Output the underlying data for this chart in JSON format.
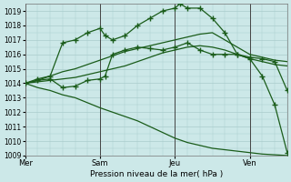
{
  "xlabel": "Pression niveau de la mer( hPa )",
  "ylim": [
    1009,
    1019.5
  ],
  "yticks": [
    1009,
    1010,
    1011,
    1012,
    1013,
    1014,
    1015,
    1016,
    1017,
    1018,
    1019
  ],
  "bg_color": "#cce8e8",
  "grid_color": "#aacccc",
  "line_color": "#1a5c1a",
  "day_labels": [
    "Mer",
    "Sam",
    "Jeu",
    "Ven"
  ],
  "day_positions": [
    0,
    3,
    6,
    9
  ],
  "xlim": [
    0,
    10.5
  ],
  "lines": [
    {
      "x": [
        0,
        0.5,
        1,
        1.5,
        2,
        2.5,
        3,
        3.5,
        4,
        4.5,
        5,
        5.5,
        6,
        6.5,
        7,
        7.5,
        8,
        8.5,
        9,
        9.5,
        10,
        10.5
      ],
      "y": [
        1014.0,
        1014.2,
        1014.5,
        1014.8,
        1015.0,
        1015.3,
        1015.6,
        1015.9,
        1016.2,
        1016.4,
        1016.6,
        1016.8,
        1017.0,
        1017.2,
        1017.4,
        1017.5,
        1017.0,
        1016.5,
        1016.0,
        1015.8,
        1015.6,
        1015.5
      ],
      "has_markers": false
    },
    {
      "x": [
        0,
        0.5,
        1,
        1.5,
        2,
        2.5,
        3,
        3.5,
        4,
        4.5,
        5,
        5.5,
        6,
        6.5,
        7,
        7.5,
        8,
        8.5,
        9,
        9.5,
        10,
        10.5
      ],
      "y": [
        1014.0,
        1014.1,
        1014.2,
        1014.3,
        1014.4,
        1014.6,
        1014.8,
        1015.0,
        1015.2,
        1015.5,
        1015.8,
        1016.1,
        1016.3,
        1016.5,
        1016.6,
        1016.5,
        1016.3,
        1016.0,
        1015.7,
        1015.5,
        1015.3,
        1015.2
      ],
      "has_markers": false
    },
    {
      "x": [
        0,
        0.5,
        1,
        1.5,
        2,
        3,
        3.5,
        4,
        4.5,
        5,
        5.5,
        6,
        6.5,
        7,
        7.5,
        8,
        8.5,
        9,
        9.5,
        10,
        10.5
      ],
      "y": [
        1014.0,
        1013.7,
        1013.5,
        1013.2,
        1013.0,
        1012.3,
        1012.0,
        1011.7,
        1011.4,
        1011.0,
        1010.6,
        1010.2,
        1009.9,
        1009.7,
        1009.5,
        1009.4,
        1009.3,
        1009.2,
        1009.1,
        1009.05,
        1009.0
      ],
      "has_markers": false
    },
    {
      "x": [
        0,
        0.5,
        1,
        1.5,
        2,
        2.5,
        3,
        3.2,
        3.5,
        4,
        4.5,
        5,
        5.5,
        6,
        6.2,
        6.5,
        7,
        7.5,
        8,
        8.5,
        9,
        9.5,
        10,
        10.5
      ],
      "y": [
        1014.0,
        1014.3,
        1014.5,
        1016.8,
        1017.0,
        1017.5,
        1017.8,
        1017.3,
        1017.0,
        1017.3,
        1018.0,
        1018.5,
        1019.0,
        1019.2,
        1019.5,
        1019.2,
        1019.2,
        1018.5,
        1017.5,
        1016.0,
        1015.8,
        1015.7,
        1015.5,
        1013.5
      ],
      "has_markers": true
    },
    {
      "x": [
        0,
        0.5,
        1,
        1.5,
        2,
        2.5,
        3,
        3.2,
        3.5,
        4,
        4.5,
        5,
        5.5,
        6,
        6.5,
        7,
        7.5,
        8,
        8.5,
        9,
        9.5,
        10,
        10.5
      ],
      "y": [
        1014.0,
        1014.2,
        1014.3,
        1013.7,
        1013.8,
        1014.2,
        1014.3,
        1014.5,
        1016.0,
        1016.3,
        1016.5,
        1016.4,
        1016.3,
        1016.5,
        1016.8,
        1016.3,
        1016.0,
        1016.0,
        1016.0,
        1015.7,
        1014.5,
        1012.5,
        1009.2
      ],
      "has_markers": true
    }
  ]
}
